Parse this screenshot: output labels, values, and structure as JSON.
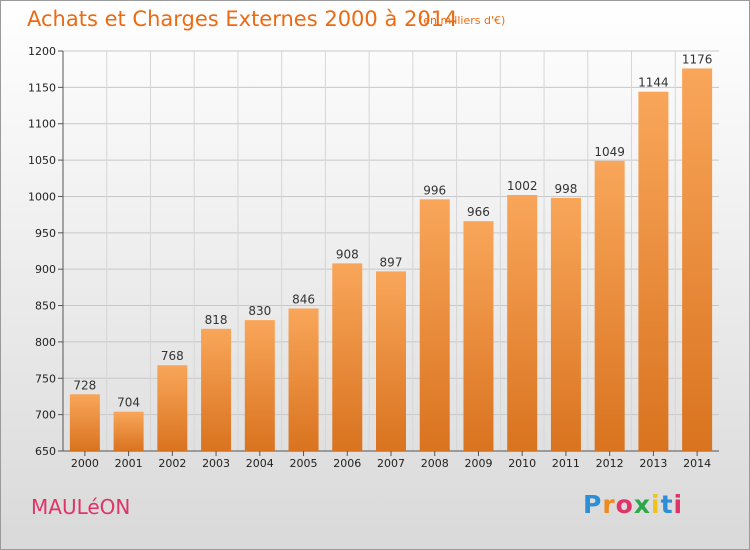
{
  "header": {
    "title": "Achats et Charges Externes 2000 à 2014",
    "unit": "(en milliers d'€)"
  },
  "footer": {
    "commune": "MAULéON",
    "brand_letters": [
      "P",
      "r",
      "o",
      "x",
      "i",
      "t",
      "i"
    ],
    "brand_colors": [
      "#2a8fd6",
      "#f08a1c",
      "#e0336a",
      "#2aa84a",
      "#f0c21c",
      "#2a8fd6",
      "#e0336a"
    ]
  },
  "chart_data": {
    "type": "bar",
    "categories": [
      "2000",
      "2001",
      "2002",
      "2003",
      "2004",
      "2005",
      "2006",
      "2007",
      "2008",
      "2009",
      "2010",
      "2011",
      "2012",
      "2013",
      "2014"
    ],
    "values": [
      728,
      704,
      768,
      818,
      830,
      846,
      908,
      897,
      996,
      966,
      1002,
      998,
      1049,
      1144,
      1176
    ],
    "title": "Achats et Charges Externes 2000 à 2014",
    "ylim": [
      650,
      1200
    ],
    "yticks": [
      650,
      700,
      750,
      800,
      850,
      900,
      950,
      1000,
      1050,
      1100,
      1150,
      1200
    ],
    "grid": true,
    "bar_color_top": "#f9a65a",
    "bar_color_bottom": "#d9731f"
  }
}
